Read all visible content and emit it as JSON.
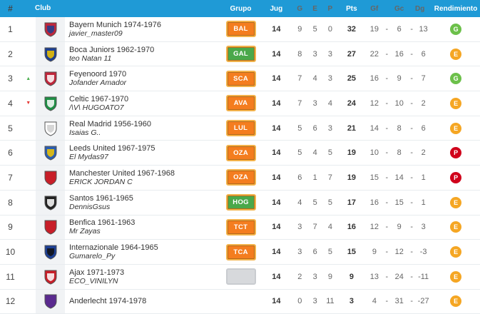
{
  "header": {
    "num": "#",
    "club": "Club",
    "grupo": "Grupo",
    "jug": "Jug",
    "g": "G",
    "e": "E",
    "p": "P",
    "pts": "Pts",
    "gf": "Gf",
    "gc": "Gc",
    "dg": "Dg",
    "rend": "Rendimiento"
  },
  "colors": {
    "header_bg": "#1f9ad6",
    "rend_G": "#6cc04a",
    "rend_E": "#f5a623",
    "rend_P": "#d0021b",
    "badge_orange": "#f47d1f",
    "badge_green": "#4aa84a"
  },
  "rows": [
    {
      "num": "1",
      "trend": "",
      "club": "Bayern Munich 1974-1976",
      "manager": "javier_master09",
      "grupo": "BAL",
      "grupo_color": "orange",
      "jug": "14",
      "g": "9",
      "e": "5",
      "p": "0",
      "pts": "32",
      "gf": "19",
      "gc": "6",
      "dg": "13",
      "rend": "G",
      "shield": [
        "#c0263b",
        "#1f3f8f"
      ]
    },
    {
      "num": "2",
      "trend": "",
      "club": "Boca Juniors 1962-1970",
      "manager": "teo Natan 11",
      "grupo": "GAL",
      "grupo_color": "green",
      "jug": "14",
      "g": "8",
      "e": "3",
      "p": "3",
      "pts": "27",
      "gf": "22",
      "gc": "16",
      "dg": "6",
      "rend": "E",
      "shield": [
        "#1d3f8f",
        "#f2c500"
      ]
    },
    {
      "num": "3",
      "trend": "up",
      "club": "Feyenoord 1970",
      "manager": "Jofander Amador",
      "grupo": "SCA",
      "grupo_color": "orange",
      "jug": "14",
      "g": "7",
      "e": "4",
      "p": "3",
      "pts": "25",
      "gf": "16",
      "gc": "9",
      "dg": "7",
      "rend": "G",
      "shield": [
        "#c0263b",
        "#ffffff"
      ]
    },
    {
      "num": "4",
      "trend": "down",
      "club": "Celtic 1967-1970",
      "manager": "/\\V\\ HUGOATO7",
      "grupo": "AVA",
      "grupo_color": "orange",
      "jug": "14",
      "g": "7",
      "e": "3",
      "p": "4",
      "pts": "24",
      "gf": "12",
      "gc": "10",
      "dg": "2",
      "rend": "E",
      "shield": [
        "#1e8f45",
        "#ffffff"
      ]
    },
    {
      "num": "5",
      "trend": "",
      "club": "Real Madrid 1956-1960",
      "manager": "Isaias G..",
      "grupo": "LUL",
      "grupo_color": "orange",
      "jug": "14",
      "g": "5",
      "e": "6",
      "p": "3",
      "pts": "21",
      "gf": "14",
      "gc": "8",
      "dg": "6",
      "rend": "E",
      "shield": [
        "#ffffff",
        "#cfcfcf"
      ]
    },
    {
      "num": "6",
      "trend": "",
      "club": "Leeds United 1967-1975",
      "manager": "El Mydas97",
      "grupo": "OZA",
      "grupo_color": "orange",
      "jug": "14",
      "g": "5",
      "e": "4",
      "p": "5",
      "pts": "19",
      "gf": "10",
      "gc": "8",
      "dg": "2",
      "rend": "P",
      "shield": [
        "#2a5db0",
        "#f2c500"
      ]
    },
    {
      "num": "7",
      "trend": "",
      "club": "Manchester United 1967-1968",
      "manager": "ERICK JORDAN C",
      "grupo": "OZA",
      "grupo_color": "orange",
      "jug": "14",
      "g": "6",
      "e": "1",
      "p": "7",
      "pts": "19",
      "gf": "15",
      "gc": "14",
      "dg": "1",
      "rend": "P",
      "shield": [
        "#c81e28",
        "#c81e28"
      ]
    },
    {
      "num": "8",
      "trend": "",
      "club": "Santos 1961-1965",
      "manager": "DennisGsus",
      "grupo": "HOG",
      "grupo_color": "green",
      "jug": "14",
      "g": "4",
      "e": "5",
      "p": "5",
      "pts": "17",
      "gf": "16",
      "gc": "15",
      "dg": "1",
      "rend": "E",
      "shield": [
        "#222222",
        "#ffffff"
      ]
    },
    {
      "num": "9",
      "trend": "",
      "club": "Benfica 1961-1963",
      "manager": "Mr Zayas",
      "grupo": "TCT",
      "grupo_color": "orange",
      "jug": "14",
      "g": "3",
      "e": "7",
      "p": "4",
      "pts": "16",
      "gf": "12",
      "gc": "9",
      "dg": "3",
      "rend": "E",
      "shield": [
        "#c81e28",
        "#c81e28"
      ]
    },
    {
      "num": "10",
      "trend": "",
      "club": "Internazionale 1964-1965",
      "manager": "Gumarelo_Py",
      "grupo": "TCA",
      "grupo_color": "orange",
      "jug": "14",
      "g": "3",
      "e": "6",
      "p": "5",
      "pts": "15",
      "gf": "9",
      "gc": "12",
      "dg": "-3",
      "rend": "E",
      "shield": [
        "#1c3f94",
        "#111111"
      ]
    },
    {
      "num": "11",
      "trend": "",
      "club": "Ajax 1971-1973",
      "manager": "ECO_VINILYN",
      "grupo": "",
      "grupo_color": "grey",
      "jug": "14",
      "g": "2",
      "e": "3",
      "p": "9",
      "pts": "9",
      "gf": "13",
      "gc": "24",
      "dg": "-11",
      "rend": "E",
      "shield": [
        "#c81e28",
        "#ffffff"
      ]
    },
    {
      "num": "12",
      "trend": "",
      "club": "Anderlecht 1974-1978",
      "manager": "",
      "grupo": "",
      "grupo_color": "none",
      "jug": "14",
      "g": "0",
      "e": "3",
      "p": "11",
      "pts": "3",
      "gf": "4",
      "gc": "31",
      "dg": "-27",
      "rend": "E",
      "shield": [
        "#5a2a8f",
        "#5a2a8f"
      ]
    }
  ]
}
